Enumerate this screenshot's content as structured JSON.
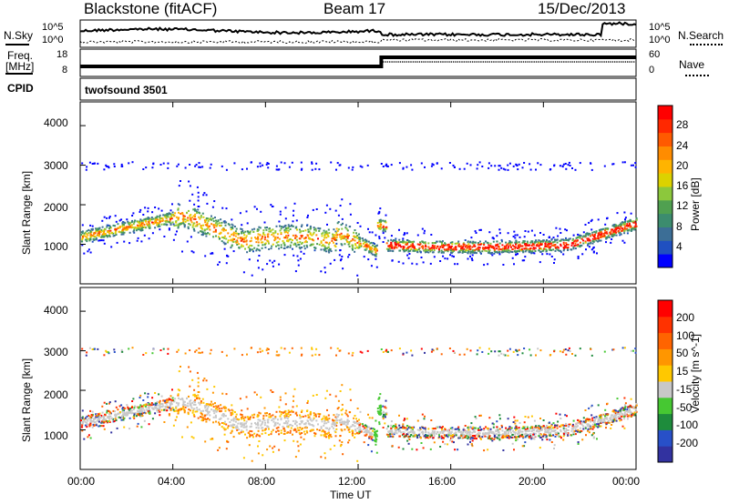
{
  "header": {
    "station": "Blackstone (fitACF)",
    "beam": "Beam 17",
    "date": "15/Dec/2013"
  },
  "top_panels": {
    "nsky_label": "N.Sky",
    "nsearch_label": "N.Search",
    "noise_left_ticks": [
      "10^5",
      "10^0"
    ],
    "noise_right_ticks": [
      "10^5",
      "10^0"
    ],
    "freq_label_line1": "Freq.",
    "freq_label_line2": "[MHz]",
    "freq_ticks": [
      "18",
      "8"
    ],
    "nave_label": "Nave",
    "nave_ticks": [
      "60",
      "0"
    ],
    "cpid_label": "CPID",
    "cpid_value": "twofsound 3501"
  },
  "power_panel": {
    "ylabel": "Slant Range [km]",
    "yticks": [
      "4000",
      "3000",
      "2000",
      "1000"
    ],
    "colorbar_label": "Power [dB]",
    "colorbar_ticks": [
      "28",
      "24",
      "20",
      "16",
      "12",
      "8",
      "4"
    ],
    "colorbar_colors": [
      "#0000ff",
      "#2050c0",
      "#3c6e96",
      "#3c8c6e",
      "#50a050",
      "#8cc83c",
      "#dcd200",
      "#ffb400",
      "#ff8c00",
      "#ff5a00",
      "#ff2800",
      "#ff0000"
    ]
  },
  "velocity_panel": {
    "ylabel": "Slant Range [km]",
    "yticks": [
      "4000",
      "3000",
      "2000",
      "1000"
    ],
    "colorbar_label": "Velocity [m s^-1]",
    "colorbar_ticks": [
      "200",
      "100",
      "50",
      "15",
      "-15",
      "-50",
      "-100",
      "-200"
    ],
    "colorbar_colors": [
      "#3232a0",
      "#2850c8",
      "#1e8c3c",
      "#46c832",
      "#c8c8c8",
      "#ffc800",
      "#ff9600",
      "#ff6400",
      "#ff3200",
      "#ff0000"
    ]
  },
  "xaxis": {
    "label": "Time UT",
    "ticks": [
      "00:00",
      "04:00",
      "08:00",
      "12:00",
      "16:00",
      "20:00",
      "00:00"
    ]
  }
}
